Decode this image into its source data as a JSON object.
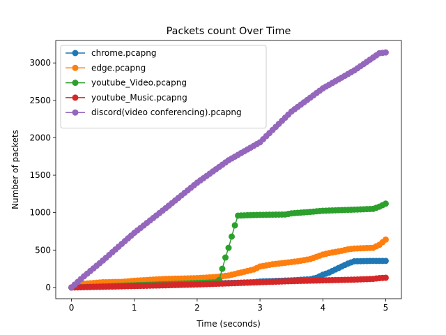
{
  "chart_data": {
    "type": "line",
    "title": "Packets count Over Time",
    "xlabel": "Time (seconds)",
    "ylabel": "Number of packets",
    "xlim": [
      -0.25,
      5.25
    ],
    "ylim": [
      -150,
      3300
    ],
    "xticks": [
      0,
      1,
      2,
      3,
      4,
      5
    ],
    "yticks": [
      0,
      500,
      1000,
      1500,
      2000,
      2500,
      3000
    ],
    "grid": false,
    "legend_position": "top-left",
    "series": [
      {
        "name": "chrome.pcapng",
        "color": "#1f77b4",
        "points": [
          [
            0,
            0
          ],
          [
            0.1,
            5
          ],
          [
            0.5,
            10
          ],
          [
            1.0,
            20
          ],
          [
            1.5,
            30
          ],
          [
            2.0,
            45
          ],
          [
            2.5,
            60
          ],
          [
            2.9,
            70
          ],
          [
            3.0,
            80
          ],
          [
            3.5,
            95
          ],
          [
            3.8,
            110
          ],
          [
            3.9,
            130
          ],
          [
            4.0,
            170
          ],
          [
            4.1,
            200
          ],
          [
            4.2,
            240
          ],
          [
            4.3,
            280
          ],
          [
            4.4,
            320
          ],
          [
            4.5,
            350
          ],
          [
            4.8,
            355
          ],
          [
            5.0,
            355
          ]
        ]
      },
      {
        "name": "edge.pcapng",
        "color": "#ff7f0e",
        "points": [
          [
            0,
            0
          ],
          [
            0.2,
            50
          ],
          [
            0.5,
            70
          ],
          [
            0.8,
            75
          ],
          [
            1.0,
            90
          ],
          [
            1.3,
            105
          ],
          [
            1.5,
            115
          ],
          [
            1.8,
            120
          ],
          [
            2.0,
            125
          ],
          [
            2.3,
            140
          ],
          [
            2.5,
            160
          ],
          [
            2.7,
            200
          ],
          [
            2.9,
            240
          ],
          [
            3.0,
            280
          ],
          [
            3.2,
            310
          ],
          [
            3.4,
            330
          ],
          [
            3.6,
            350
          ],
          [
            3.8,
            380
          ],
          [
            3.9,
            410
          ],
          [
            4.0,
            440
          ],
          [
            4.1,
            460
          ],
          [
            4.3,
            490
          ],
          [
            4.4,
            510
          ],
          [
            4.5,
            520
          ],
          [
            4.8,
            530
          ],
          [
            4.9,
            570
          ],
          [
            5.0,
            640
          ]
        ]
      },
      {
        "name": "youtube_Video.pcapng",
        "color": "#2ca02c",
        "points": [
          [
            0,
            0
          ],
          [
            0.5,
            15
          ],
          [
            1.0,
            30
          ],
          [
            1.5,
            45
          ],
          [
            2.0,
            60
          ],
          [
            2.3,
            70
          ],
          [
            2.35,
            100
          ],
          [
            2.4,
            250
          ],
          [
            2.45,
            400
          ],
          [
            2.5,
            530
          ],
          [
            2.55,
            680
          ],
          [
            2.6,
            830
          ],
          [
            2.65,
            960
          ],
          [
            2.8,
            965
          ],
          [
            3.0,
            970
          ],
          [
            3.4,
            975
          ],
          [
            3.5,
            990
          ],
          [
            3.8,
            1010
          ],
          [
            4.0,
            1025
          ],
          [
            4.5,
            1040
          ],
          [
            4.8,
            1050
          ],
          [
            4.9,
            1080
          ],
          [
            5.0,
            1120
          ]
        ]
      },
      {
        "name": "youtube_Music.pcapng",
        "color": "#d62728",
        "points": [
          [
            0,
            0
          ],
          [
            0.5,
            10
          ],
          [
            1.0,
            20
          ],
          [
            1.5,
            30
          ],
          [
            2.0,
            40
          ],
          [
            2.5,
            55
          ],
          [
            3.0,
            70
          ],
          [
            3.5,
            85
          ],
          [
            4.0,
            95
          ],
          [
            4.5,
            105
          ],
          [
            4.8,
            115
          ],
          [
            4.9,
            125
          ],
          [
            5.0,
            130
          ]
        ]
      },
      {
        "name": "discord(video conferencing).pcapng",
        "color": "#9467bd",
        "points": [
          [
            0,
            0
          ],
          [
            0.2,
            150
          ],
          [
            0.5,
            360
          ],
          [
            1.0,
            730
          ],
          [
            1.5,
            1060
          ],
          [
            2.0,
            1400
          ],
          [
            2.5,
            1700
          ],
          [
            3.0,
            1940
          ],
          [
            3.5,
            2350
          ],
          [
            4.0,
            2660
          ],
          [
            4.5,
            2900
          ],
          [
            4.9,
            3130
          ],
          [
            5.0,
            3140
          ]
        ]
      }
    ]
  }
}
